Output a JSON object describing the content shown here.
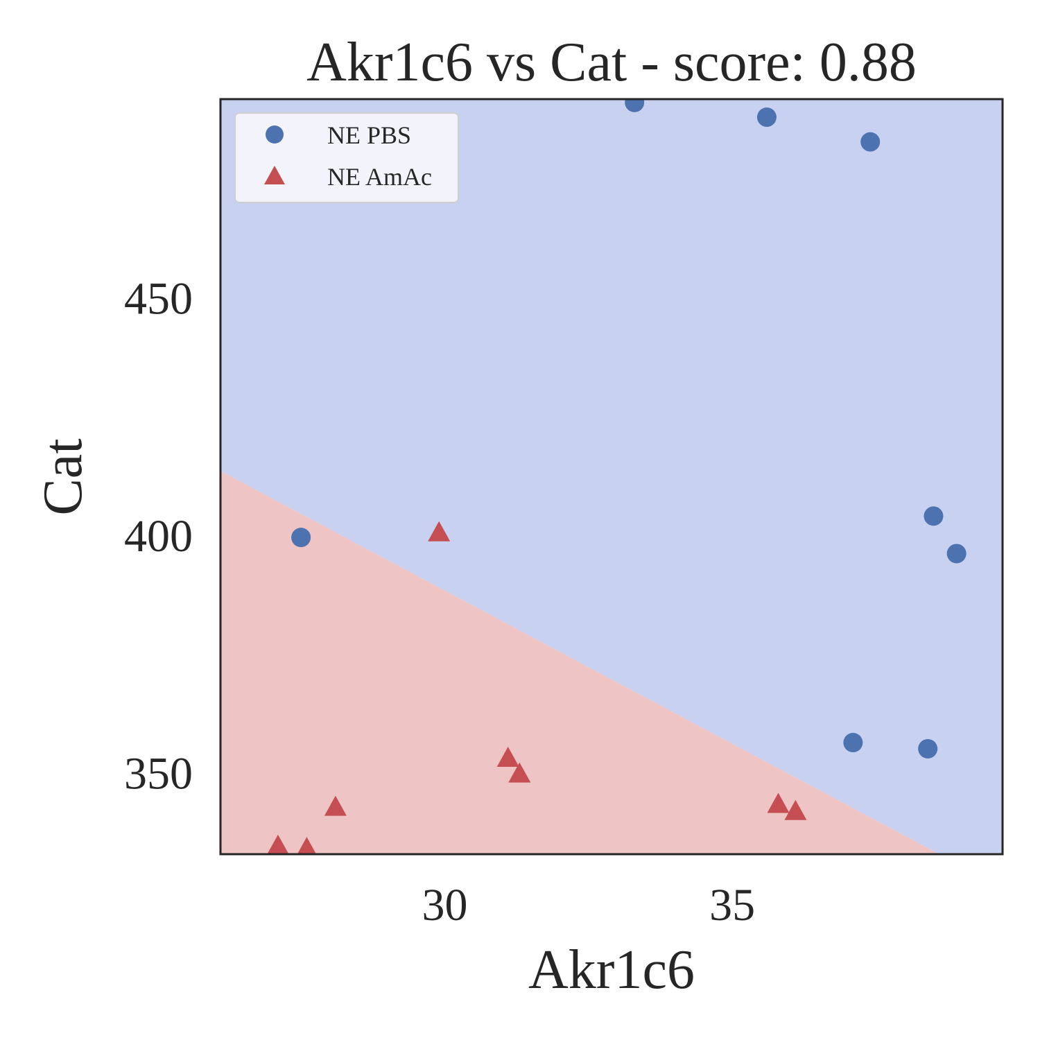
{
  "chart_data": {
    "type": "scatter",
    "title": "Akr1c6 vs Cat - score: 0.88",
    "xlabel": "Akr1c6",
    "ylabel": "Cat",
    "xlim": [
      26.1,
      39.7
    ],
    "ylim": [
      333,
      492
    ],
    "xticks": [
      30,
      35
    ],
    "yticks": [
      350,
      400,
      450
    ],
    "grid": false,
    "legend_position": "top-left",
    "decision_boundary": {
      "colors": {
        "NE PBS": "#c9d1f1",
        "NE AmAc": "#efc4c4"
      },
      "line": [
        [
          26.1,
          413.7
        ],
        [
          38.6,
          333
        ]
      ]
    },
    "series": [
      {
        "name": "NE PBS",
        "marker": "circle",
        "color": "#4c72b0",
        "points": [
          [
            33.3,
            491.3
          ],
          [
            35.6,
            488.2
          ],
          [
            37.4,
            483.0
          ],
          [
            27.5,
            399.7
          ],
          [
            38.5,
            404.2
          ],
          [
            38.9,
            396.3
          ],
          [
            37.1,
            356.5
          ],
          [
            38.4,
            355.2
          ]
        ]
      },
      {
        "name": "NE AmAc",
        "marker": "triangle",
        "color": "#c44e52",
        "points": [
          [
            29.9,
            400.5
          ],
          [
            31.1,
            353.0
          ],
          [
            31.3,
            349.7
          ],
          [
            28.1,
            342.7
          ],
          [
            35.8,
            343.3
          ],
          [
            36.1,
            341.8
          ],
          [
            27.1,
            334.5
          ],
          [
            27.6,
            334.0
          ]
        ]
      }
    ]
  }
}
